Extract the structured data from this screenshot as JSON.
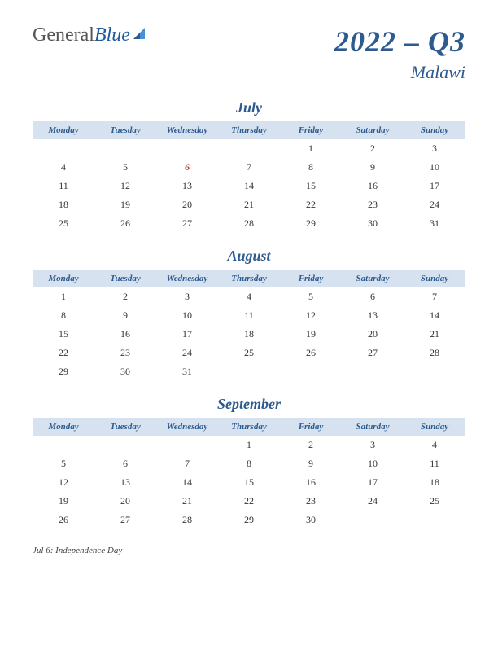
{
  "logo": {
    "general": "General",
    "blue": "Blue"
  },
  "header": {
    "quarter": "2022 – Q3",
    "location": "Malawi"
  },
  "days": [
    "Monday",
    "Tuesday",
    "Wednesday",
    "Thursday",
    "Friday",
    "Saturday",
    "Sunday"
  ],
  "colors": {
    "primary": "#2d5a8f",
    "headerBg": "#d6e2f0",
    "holiday": "#c0392b",
    "text": "#333",
    "logoGray": "#555",
    "logoBlue": "#1e5a9e"
  },
  "months": [
    {
      "name": "July",
      "weeks": [
        [
          "",
          "",
          "",
          "",
          "1",
          "2",
          "3"
        ],
        [
          "4",
          "5",
          "6",
          "7",
          "8",
          "9",
          "10"
        ],
        [
          "11",
          "12",
          "13",
          "14",
          "15",
          "16",
          "17"
        ],
        [
          "18",
          "19",
          "20",
          "21",
          "22",
          "23",
          "24"
        ],
        [
          "25",
          "26",
          "27",
          "28",
          "29",
          "30",
          "31"
        ]
      ],
      "holidays": [
        [
          1,
          2
        ]
      ]
    },
    {
      "name": "August",
      "weeks": [
        [
          "1",
          "2",
          "3",
          "4",
          "5",
          "6",
          "7"
        ],
        [
          "8",
          "9",
          "10",
          "11",
          "12",
          "13",
          "14"
        ],
        [
          "15",
          "16",
          "17",
          "18",
          "19",
          "20",
          "21"
        ],
        [
          "22",
          "23",
          "24",
          "25",
          "26",
          "27",
          "28"
        ],
        [
          "29",
          "30",
          "31",
          "",
          "",
          "",
          ""
        ]
      ],
      "holidays": []
    },
    {
      "name": "September",
      "weeks": [
        [
          "",
          "",
          "",
          "1",
          "2",
          "3",
          "4"
        ],
        [
          "5",
          "6",
          "7",
          "8",
          "9",
          "10",
          "11"
        ],
        [
          "12",
          "13",
          "14",
          "15",
          "16",
          "17",
          "18"
        ],
        [
          "19",
          "20",
          "21",
          "22",
          "23",
          "24",
          "25"
        ],
        [
          "26",
          "27",
          "28",
          "29",
          "30",
          "",
          ""
        ]
      ],
      "holidays": []
    }
  ],
  "holidayList": "Jul 6:  Independence Day"
}
